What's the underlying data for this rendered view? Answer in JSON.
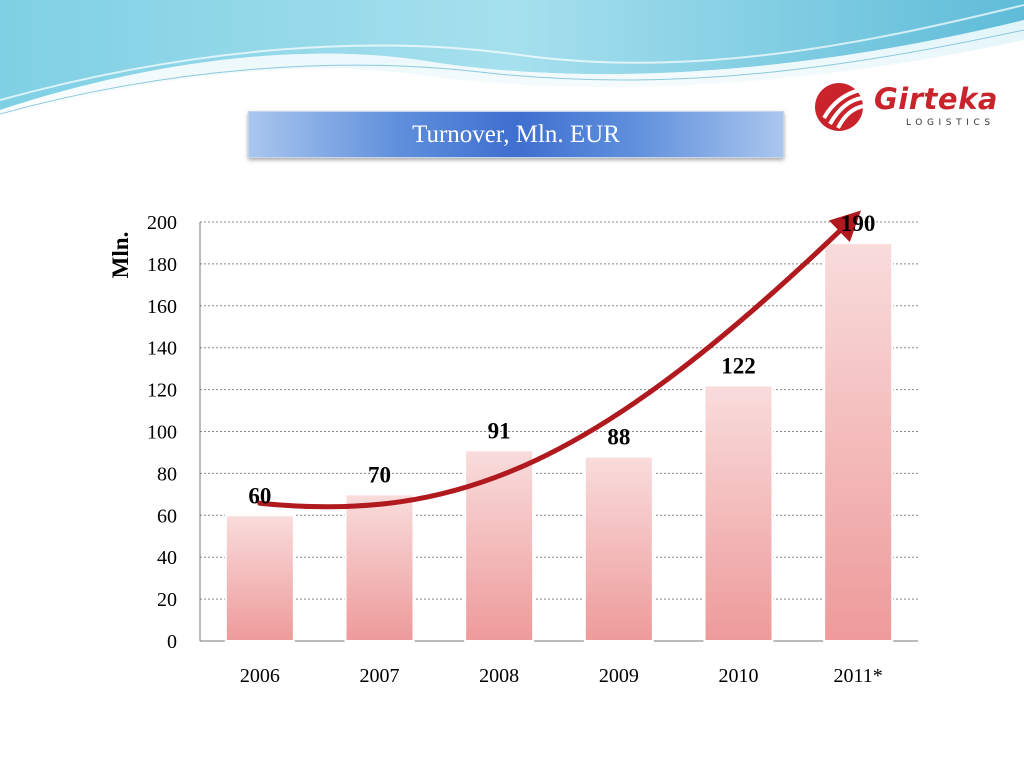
{
  "title": "Turnover, Mln. EUR",
  "logo": {
    "name": "Girteka",
    "subtitle": "LOGISTICS"
  },
  "colors": {
    "bar_top": "#f9dcdc",
    "bar_bottom": "#ee9a9a",
    "arrow": "#b0191e",
    "title_blue": "#3f6fcf",
    "logo_red": "#c9242b"
  },
  "chart_data": {
    "type": "bar",
    "categories": [
      "2006",
      "2007",
      "2008",
      "2009",
      "2010",
      "2011*"
    ],
    "values": [
      60,
      70,
      91,
      88,
      122,
      190
    ],
    "value_labels": [
      "60",
      "70",
      "91",
      "88",
      "122",
      "190"
    ],
    "ylabel": "Mln.",
    "ylim": [
      0,
      200
    ],
    "yticks": [
      0,
      20,
      40,
      60,
      80,
      100,
      120,
      140,
      160,
      180,
      200
    ],
    "grid": true,
    "annotation": "red curved trend arrow rising from 2006 to 2011*"
  }
}
